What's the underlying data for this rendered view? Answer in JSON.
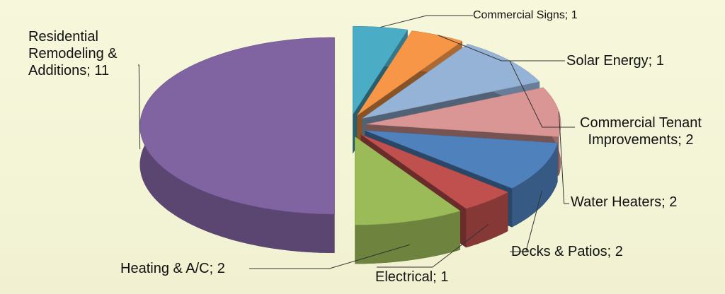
{
  "chart_data": {
    "type": "pie3d",
    "values": [
      1,
      1,
      2,
      2,
      2,
      1,
      2,
      11
    ],
    "value_labels": [
      "Commercial Signs; 1",
      "Solar Energy; 1",
      "Commercial Tenant Improvements; 2",
      "Water Heaters; 2",
      "Decks & Patios; 2",
      "Electrical; 1",
      "Heating & A/C; 2",
      "Residential Remodeling & Additions; 11"
    ],
    "colors": [
      "#4bacc6",
      "#f79646",
      "#95b3d7",
      "#d99694",
      "#4f81bd",
      "#c0504d",
      "#9bbb59",
      "#8064a2"
    ]
  }
}
